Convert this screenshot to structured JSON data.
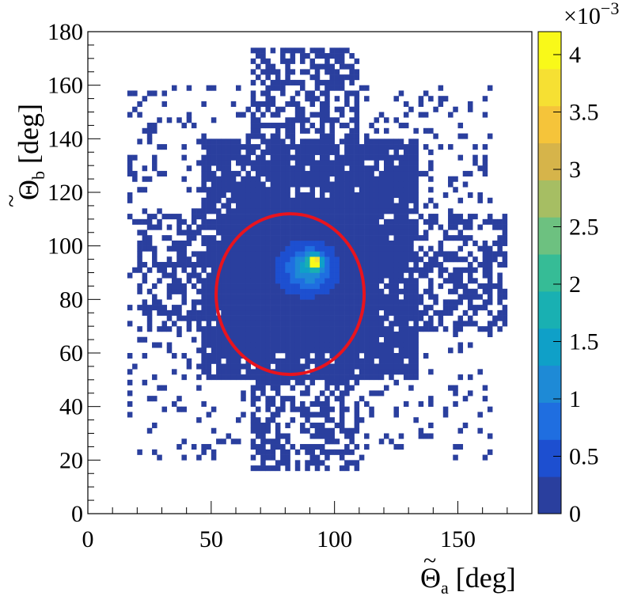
{
  "chart_data": {
    "type": "heatmap",
    "x_axis": {
      "label_symbol": "Θ",
      "label_subscript": "a",
      "label_unit": "[deg]",
      "tilde": true,
      "range": [
        0,
        180
      ],
      "ticks": [
        0,
        50,
        100,
        150
      ],
      "tick_labels": [
        "0",
        "50",
        "100",
        "150"
      ]
    },
    "y_axis": {
      "label_symbol": "Θ",
      "label_subscript": "b",
      "label_unit": "[deg]",
      "tilde": true,
      "range": [
        0,
        180
      ],
      "ticks": [
        0,
        20,
        40,
        60,
        80,
        100,
        120,
        140,
        160,
        180
      ],
      "tick_labels": [
        "0",
        "20",
        "40",
        "60",
        "80",
        "100",
        "120",
        "140",
        "160",
        "180"
      ]
    },
    "color_scale": {
      "range": [
        0,
        4.2
      ],
      "multiplier_label": "×10",
      "multiplier_exponent": "−3",
      "ticks": [
        0,
        0.5,
        1,
        1.5,
        2,
        2.5,
        3,
        3.5,
        4
      ],
      "tick_labels": [
        "0",
        "0.5",
        "1",
        "1.5",
        "2",
        "2.5",
        "3",
        "3.5",
        "4"
      ],
      "palette": [
        "#2a3f9e",
        "#1d4fd0",
        "#1f6ee0",
        "#1e8ad6",
        "#0fa0c8",
        "#19b0b2",
        "#36bc96",
        "#6dc180",
        "#a6be63",
        "#d6b44a",
        "#f5c43a",
        "#f6e033",
        "#f9f919"
      ]
    },
    "bins_deg": 2,
    "clusters": [
      {
        "cx": 92,
        "cy": 94,
        "sx": 1.5,
        "sy": 1.5,
        "peak": 4.1
      },
      {
        "cx": 90,
        "cy": 92,
        "sx": 6,
        "sy": 5,
        "peak": 1.2
      },
      {
        "cx": 85,
        "cy": 90,
        "sx": 18,
        "sy": 14,
        "peak": 0.3
      }
    ],
    "overlay_circle": {
      "center": [
        82,
        82
      ],
      "radius": 30,
      "color": "#e8141e"
    },
    "grid": false,
    "legend": "colorbar-right"
  }
}
